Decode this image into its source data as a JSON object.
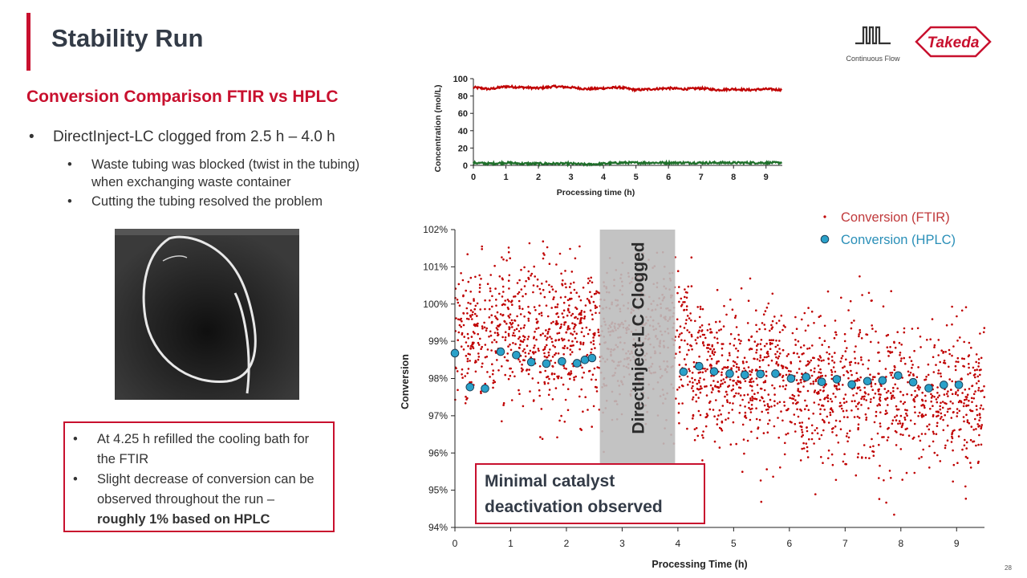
{
  "slide": {
    "title": "Stability Run",
    "subtitle": "Conversion Comparison FTIR vs HPLC",
    "bullets": {
      "main": "DirectInject-LC clogged from 2.5 h – 4.0 h",
      "sub": [
        "Waste tubing was blocked (twist in the tubing) when exchanging waste container",
        "Cutting the tubing resolved the problem"
      ]
    },
    "note": {
      "item1": "At 4.25 h refilled the cooling bath for the FTIR",
      "item2_plain": "Slight decrease of conversion can be observed throughout the run – ",
      "item2_bold": "roughly 1% based on HPLC"
    },
    "logos": {
      "continuous_flow": "Continuous Flow",
      "takeda": "Takeda"
    },
    "page_number": "28",
    "colors": {
      "accent": "#c8102e",
      "title": "#333b47",
      "ftir": "#c00000",
      "hplc": "#2aa1c9",
      "green": "#1e6f2a"
    }
  },
  "chart_data": [
    {
      "type": "line",
      "xlabel": "Processing time (h)",
      "ylabel": "Concentration (mol/L)",
      "xlim": [
        0,
        9.5
      ],
      "ylim": [
        0,
        100
      ],
      "xticks": [
        0,
        1,
        2,
        3,
        4,
        5,
        6,
        7,
        8,
        9
      ],
      "yticks": [
        0,
        20,
        40,
        60,
        80,
        100
      ],
      "grid": false,
      "series": [
        {
          "color": "#c00000",
          "x": [
            0,
            0.5,
            1,
            1.5,
            2,
            2.5,
            3,
            3.5,
            4,
            4.5,
            5,
            5.5,
            6,
            6.5,
            7,
            7.5,
            8,
            8.5,
            9,
            9.5
          ],
          "y": [
            90,
            88,
            91,
            90,
            89,
            91,
            90,
            88,
            89,
            90,
            87,
            88,
            89,
            88,
            89,
            87,
            88,
            87,
            88,
            87
          ]
        },
        {
          "color": "#1e6f2a",
          "x": [
            0,
            0.5,
            1,
            1.5,
            2,
            2.5,
            3,
            3.5,
            4,
            4.5,
            5,
            5.5,
            6,
            6.5,
            7,
            7.5,
            8,
            8.5,
            9,
            9.5
          ],
          "y": [
            3,
            2,
            3,
            2,
            2,
            2,
            2,
            1,
            2,
            3,
            3,
            3,
            3,
            3,
            3,
            3,
            3,
            3,
            3,
            3
          ]
        }
      ]
    },
    {
      "type": "scatter",
      "xlabel": "Processing Time (h)",
      "ylabel": "Conversion",
      "xlim": [
        0,
        9.5
      ],
      "ylim": [
        94,
        102
      ],
      "xticks": [
        0,
        1,
        2,
        3,
        4,
        5,
        6,
        7,
        8,
        9
      ],
      "yticks": [
        94,
        95,
        96,
        97,
        98,
        99,
        100,
        101,
        102
      ],
      "ytick_labels": [
        "94%",
        "95%",
        "96%",
        "97%",
        "98%",
        "99%",
        "100%",
        "101%",
        "102%"
      ],
      "grid": false,
      "legend": "top-right",
      "shaded_region": {
        "x": [
          2.6,
          3.95
        ],
        "label": "DirectInject-LC Clogged"
      },
      "annotation": "Minimal catalyst deactivation observed",
      "ftir_segments": [
        {
          "x_start": 0,
          "x_end": 2.6,
          "mean": 99.2,
          "spread": 1.3,
          "points": 700
        },
        {
          "x_start": 2.6,
          "x_end": 4.25,
          "mean": 99.0,
          "spread": 1.4,
          "points": 430
        },
        {
          "x_start": 4.25,
          "x_end": 9.5,
          "mean_start": 98.2,
          "mean_end": 97.3,
          "spread": 1.3,
          "points": 1350
        }
      ],
      "series": [
        {
          "name": "Conversion (FTIR)",
          "color": "#c00000",
          "marker": "dot"
        },
        {
          "name": "Conversion (HPLC)",
          "color": "#2aa1c9",
          "marker": "circle",
          "x": [
            0,
            0.27,
            0.54,
            0.82,
            1.1,
            1.37,
            1.64,
            1.92,
            2.19,
            2.33,
            2.46,
            4.1,
            4.38,
            4.65,
            4.93,
            5.2,
            5.48,
            5.75,
            6.03,
            6.3,
            6.58,
            6.85,
            7.12,
            7.4,
            7.67,
            7.95,
            8.22,
            8.5,
            8.77,
            9.04
          ],
          "y": [
            98.68,
            97.77,
            97.73,
            98.72,
            98.63,
            98.44,
            98.4,
            98.46,
            98.41,
            98.5,
            98.55,
            98.18,
            98.33,
            98.19,
            98.13,
            98.1,
            98.12,
            98.13,
            98.0,
            98.04,
            97.91,
            97.98,
            97.84,
            97.93,
            97.95,
            98.08,
            97.9,
            97.74,
            97.83,
            97.83
          ]
        }
      ]
    }
  ]
}
